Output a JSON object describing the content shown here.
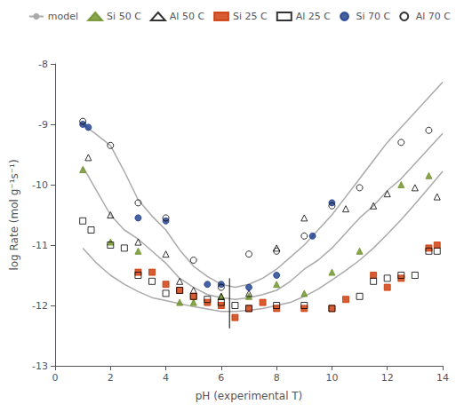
{
  "chart_data": {
    "type": "scatter",
    "xlabel": "pH (experimental T)",
    "ylabel": "log Rate (mol g⁻¹s⁻¹)",
    "xlim": [
      0,
      14
    ],
    "ylim": [
      -13,
      -8
    ],
    "xticks": [
      0,
      2,
      4,
      6,
      8,
      10,
      12,
      14
    ],
    "yticks": [
      -13,
      -12,
      -11,
      -10,
      -9,
      -8
    ],
    "grid": false,
    "legend": "upper right",
    "series": [
      {
        "name": "model",
        "type": "line",
        "color": "#aaaaaa",
        "line_style": "solid",
        "x": [
          1.0,
          1.5,
          2.0,
          2.5,
          3.0,
          3.5,
          4.0,
          4.5,
          5.0,
          5.5,
          6.0,
          6.5,
          7.0,
          7.5,
          8.0,
          8.5,
          9.0,
          9.5,
          10.0,
          10.5,
          11.0,
          11.5,
          12.0,
          12.5,
          13.0,
          13.5,
          14.0
        ],
        "values": [
          -9.0,
          -9.17,
          -9.35,
          -9.78,
          -10.25,
          -10.52,
          -10.75,
          -11.08,
          -11.35,
          -11.52,
          -11.65,
          -11.7,
          -11.65,
          -11.55,
          -11.4,
          -11.2,
          -11.0,
          -10.75,
          -10.5,
          -10.2,
          -9.9,
          -9.6,
          -9.3,
          -9.05,
          -8.8,
          -8.55,
          -8.3
        ]
      },
      {
        "name": "model",
        "type": "line",
        "color": "#aaaaaa",
        "line_style": "solid",
        "x": [
          1.0,
          1.5,
          2.0,
          2.5,
          3.0,
          3.5,
          4.0,
          4.5,
          5.0,
          5.5,
          6.0,
          6.5,
          7.0,
          7.5,
          8.0,
          8.5,
          9.0,
          9.5,
          10.0,
          10.5,
          11.0,
          11.5,
          12.0,
          12.5,
          13.0,
          13.5,
          14.0
        ],
        "values": [
          -9.7,
          -10.1,
          -10.5,
          -10.75,
          -10.9,
          -11.1,
          -11.3,
          -11.55,
          -11.7,
          -11.82,
          -11.87,
          -11.9,
          -11.87,
          -11.82,
          -11.75,
          -11.6,
          -11.4,
          -11.25,
          -11.05,
          -10.8,
          -10.55,
          -10.35,
          -10.1,
          -9.9,
          -9.65,
          -9.4,
          -9.15
        ]
      },
      {
        "name": "model",
        "type": "line",
        "color": "#aaaaaa",
        "line_style": "solid",
        "x": [
          1.0,
          1.5,
          2.0,
          2.5,
          3.0,
          3.5,
          4.0,
          4.5,
          5.0,
          5.5,
          6.0,
          6.5,
          7.0,
          7.5,
          8.0,
          8.5,
          9.0,
          9.5,
          10.0,
          10.5,
          11.0,
          11.5,
          12.0,
          12.5,
          13.0,
          13.5,
          14.0
        ],
        "values": [
          -11.05,
          -11.3,
          -11.5,
          -11.65,
          -11.77,
          -11.87,
          -11.92,
          -11.97,
          -12.02,
          -12.06,
          -12.1,
          -12.1,
          -12.08,
          -12.05,
          -12.0,
          -11.95,
          -11.85,
          -11.73,
          -11.58,
          -11.42,
          -11.25,
          -11.05,
          -10.82,
          -10.58,
          -10.32,
          -10.05,
          -9.78
        ]
      },
      {
        "name": "Si 50 C",
        "type": "scatter",
        "color": "#6b8e23",
        "marker": "triangle",
        "x": [
          1.0,
          2.0,
          3.0,
          4.5,
          5.0,
          6.0,
          7.0,
          8.0,
          9.0,
          10.0,
          11.0,
          12.5,
          13.5
        ],
        "values": [
          -9.75,
          -10.95,
          -11.1,
          -11.95,
          -11.95,
          -11.85,
          -11.85,
          -11.65,
          -11.8,
          -11.45,
          -11.1,
          -10.0,
          -9.85
        ]
      },
      {
        "name": "Al 50 C",
        "type": "scatter",
        "color": "#000000",
        "marker": "triangle-open",
        "x": [
          1.2,
          2.0,
          3.0,
          4.0,
          4.5,
          5.0,
          6.0,
          7.0,
          8.0,
          9.0,
          10.5,
          11.5,
          12.0,
          13.0,
          13.8
        ],
        "values": [
          -9.55,
          -10.5,
          -10.95,
          -11.15,
          -11.6,
          -11.75,
          -11.85,
          -11.8,
          -11.05,
          -10.55,
          -10.4,
          -10.35,
          -10.15,
          -10.05,
          -10.2
        ]
      },
      {
        "name": "Si 25 C",
        "type": "scatter",
        "color": "#cc3300",
        "marker": "square",
        "x": [
          3.0,
          3.5,
          4.0,
          4.5,
          5.0,
          5.5,
          6.0,
          6.5,
          7.0,
          7.5,
          8.0,
          9.0,
          10.0,
          10.5,
          11.5,
          12.0,
          12.5,
          13.5,
          13.8
        ],
        "values": [
          -11.45,
          -11.45,
          -11.65,
          -11.75,
          -11.85,
          -11.95,
          -12.0,
          -12.2,
          -12.05,
          -11.95,
          -12.05,
          -12.05,
          -12.05,
          -11.9,
          -11.5,
          -11.7,
          -11.55,
          -11.05,
          -11.0
        ]
      },
      {
        "name": "Al 25 C",
        "type": "scatter",
        "color": "#000000",
        "marker": "square-open",
        "x": [
          1.0,
          1.3,
          2.0,
          2.5,
          3.0,
          3.5,
          4.0,
          4.5,
          5.0,
          5.5,
          6.0,
          6.5,
          7.0,
          8.0,
          9.0,
          10.0,
          11.0,
          11.5,
          12.0,
          12.5,
          13.0,
          13.5,
          13.8
        ],
        "values": [
          -10.6,
          -10.75,
          -11.0,
          -11.05,
          -11.5,
          -11.6,
          -11.8,
          -11.75,
          -11.85,
          -11.9,
          -11.95,
          -12.0,
          -12.05,
          -12.0,
          -12.0,
          -12.05,
          -11.85,
          -11.6,
          -11.55,
          -11.5,
          -11.5,
          -11.1,
          -11.1
        ]
      },
      {
        "name": "Si 70 C",
        "type": "scatter",
        "color": "#1a3a8a",
        "marker": "circle",
        "x": [
          1.0,
          1.2,
          3.0,
          4.0,
          5.5,
          6.0,
          7.0,
          8.0,
          9.3,
          10.0
        ],
        "values": [
          -9.0,
          -9.05,
          -10.55,
          -10.6,
          -11.65,
          -11.65,
          -11.7,
          -11.5,
          -10.85,
          -10.3
        ]
      },
      {
        "name": "Al 70 C",
        "type": "scatter",
        "color": "#000000",
        "marker": "circle-open",
        "x": [
          1.0,
          2.0,
          3.0,
          4.0,
          5.0,
          6.0,
          7.0,
          8.0,
          9.0,
          10.0,
          11.0,
          12.5,
          13.5
        ],
        "values": [
          -8.95,
          -9.35,
          -10.3,
          -10.55,
          -11.25,
          -11.7,
          -11.15,
          -11.1,
          -10.85,
          -10.35,
          -10.05,
          -9.3,
          -9.1
        ]
      }
    ],
    "error_bar": {
      "x": 6.3,
      "low": -12.38,
      "high": -11.55,
      "color": "#000000"
    }
  }
}
